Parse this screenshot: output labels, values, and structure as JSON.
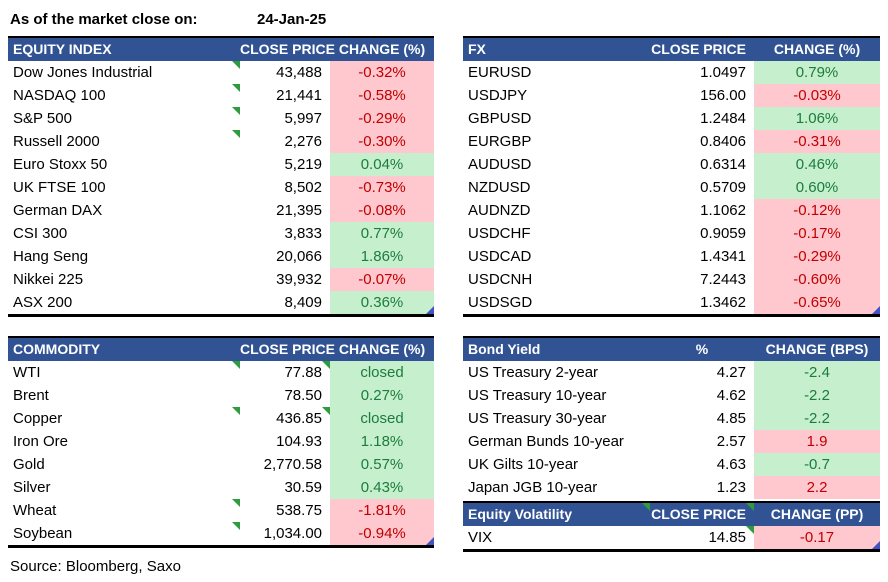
{
  "meta": {
    "as_of_label": "As of the market close on:",
    "as_of_date": "24-Jan-25",
    "source": "Source: Bloomberg, Saxo"
  },
  "colors": {
    "header_bg": "#315394",
    "header_text": "#FFFFFF",
    "up_bg": "#C6EFCE",
    "up_text": "#1C7C3C",
    "down_bg": "#FFC7CE",
    "down_text": "#C00000",
    "flag_green": "#2E9B3E",
    "corner_blue": "#4453C4"
  },
  "icons": {
    "green_flag": "cell-flag-triangle",
    "blue_corner": "cell-corner-triangle"
  },
  "tables": {
    "equity": {
      "title": "EQUITY INDEX",
      "col_price": "CLOSE PRICE",
      "col_change": "CHANGE (%)",
      "rows": [
        {
          "name": "Dow Jones Industrial",
          "price": "43,488",
          "change": "-0.32%",
          "color": "down",
          "markers": [
            "price"
          ]
        },
        {
          "name": "NASDAQ 100",
          "price": "21,441",
          "change": "-0.58%",
          "color": "down",
          "markers": [
            "price"
          ]
        },
        {
          "name": "S&P 500",
          "price": "5,997",
          "change": "-0.29%",
          "color": "down",
          "markers": [
            "price"
          ]
        },
        {
          "name": "Russell 2000",
          "price": "2,276",
          "change": "-0.30%",
          "color": "down",
          "markers": [
            "price"
          ]
        },
        {
          "name": "Euro Stoxx 50",
          "price": "5,219",
          "change": "0.04%",
          "color": "up"
        },
        {
          "name": "UK FTSE 100",
          "price": "8,502",
          "change": "-0.73%",
          "color": "down"
        },
        {
          "name": "German DAX",
          "price": "21,395",
          "change": "-0.08%",
          "color": "down"
        },
        {
          "name": "CSI 300",
          "price": "3,833",
          "change": "0.77%",
          "color": "up"
        },
        {
          "name": "Hang Seng",
          "price": "20,066",
          "change": "1.86%",
          "color": "up"
        },
        {
          "name": "Nikkei 225",
          "price": "39,932",
          "change": "-0.07%",
          "color": "down"
        },
        {
          "name": "ASX 200",
          "price": "8,409",
          "change": "0.36%",
          "color": "up",
          "corner": true
        }
      ]
    },
    "fx": {
      "title": "FX",
      "col_price": "CLOSE PRICE",
      "col_change": "CHANGE (%)",
      "rows": [
        {
          "name": "EURUSD",
          "price": "1.0497",
          "change": "0.79%",
          "color": "up"
        },
        {
          "name": "USDJPY",
          "price": "156.00",
          "change": "-0.03%",
          "color": "down"
        },
        {
          "name": "GBPUSD",
          "price": "1.2484",
          "change": "1.06%",
          "color": "up"
        },
        {
          "name": "EURGBP",
          "price": "0.8406",
          "change": "-0.31%",
          "color": "down"
        },
        {
          "name": "AUDUSD",
          "price": "0.6314",
          "change": "0.46%",
          "color": "up"
        },
        {
          "name": "NZDUSD",
          "price": "0.5709",
          "change": "0.60%",
          "color": "up"
        },
        {
          "name": "AUDNZD",
          "price": "1.1062",
          "change": "-0.12%",
          "color": "down"
        },
        {
          "name": "USDCHF",
          "price": "0.9059",
          "change": "-0.17%",
          "color": "down"
        },
        {
          "name": "USDCAD",
          "price": "1.4341",
          "change": "-0.29%",
          "color": "down"
        },
        {
          "name": "USDCNH",
          "price": "7.2443",
          "change": "-0.60%",
          "color": "down"
        },
        {
          "name": "USDSGD",
          "price": "1.3462",
          "change": "-0.65%",
          "color": "down",
          "corner": true
        }
      ]
    },
    "commodity": {
      "title": "COMMODITY",
      "col_price": "CLOSE PRICE",
      "col_change": "CHANGE (%)",
      "rows": [
        {
          "name": "WTI",
          "price": "77.88",
          "change": "closed",
          "color": "up",
          "markers": [
            "price",
            "change"
          ]
        },
        {
          "name": "Brent",
          "price": "78.50",
          "change": "0.27%",
          "color": "up"
        },
        {
          "name": "Copper",
          "price": "436.85",
          "change": "closed",
          "color": "up",
          "markers": [
            "price",
            "change"
          ]
        },
        {
          "name": "Iron Ore",
          "price": "104.93",
          "change": "1.18%",
          "color": "up"
        },
        {
          "name": "Gold",
          "price": "2,770.58",
          "change": "0.57%",
          "color": "up"
        },
        {
          "name": "Silver",
          "price": "30.59",
          "change": "0.43%",
          "color": "up"
        },
        {
          "name": "Wheat",
          "price": "538.75",
          "change": "-1.81%",
          "color": "down",
          "markers": [
            "price"
          ]
        },
        {
          "name": "Soybean",
          "price": "1,034.00",
          "change": "-0.94%",
          "color": "down",
          "markers": [
            "price"
          ],
          "corner": true
        }
      ]
    },
    "bond": {
      "title": "Bond Yield",
      "col_price": "%",
      "col_change": "CHANGE (BPS)",
      "rows": [
        {
          "name": "US Treasury 2-year",
          "price": "4.27",
          "change": "-2.4",
          "color": "up"
        },
        {
          "name": "US Treasury 10-year",
          "price": "4.62",
          "change": "-2.2",
          "color": "up"
        },
        {
          "name": "US Treasury 30-year",
          "price": "4.85",
          "change": "-2.2",
          "color": "up"
        },
        {
          "name": "German Bunds 10-year",
          "price": "2.57",
          "change": "1.9",
          "color": "down"
        },
        {
          "name": "UK Gilts 10-year",
          "price": "4.63",
          "change": "-0.7",
          "color": "up"
        },
        {
          "name": "Japan JGB 10-year",
          "price": "1.23",
          "change": "2.2",
          "color": "down"
        }
      ]
    },
    "volatility": {
      "title": "Equity Volatility",
      "col_price": "CLOSE PRICE",
      "col_change": "CHANGE (PP)",
      "rows": [
        {
          "name": "VIX",
          "price": "14.85",
          "change": "-0.17",
          "color": "down",
          "markers": [
            "change"
          ],
          "corner": true
        }
      ]
    }
  }
}
